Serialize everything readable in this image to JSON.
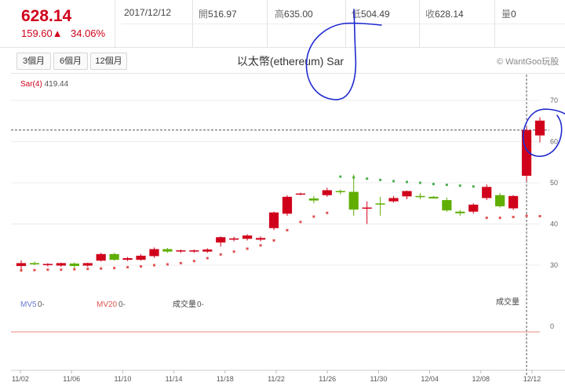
{
  "quote": {
    "last": "628.14",
    "change": "159.60▲",
    "change_pct": "34.06%"
  },
  "stats": {
    "date": "2017/12/12",
    "open_label": "開",
    "open": "516.97",
    "high_label": "高",
    "high": "635.00",
    "low_label": "低",
    "low": "504.49",
    "close_label": "收",
    "close": "628.14",
    "vol_label": "量",
    "vol": "0"
  },
  "range_buttons": [
    "3個月",
    "6個月",
    "12個月"
  ],
  "title": "以太幣(ethereum) Sar",
  "credit": "© WantGoo玩股",
  "indicator": {
    "name": "Sar(4)",
    "value": "419.44"
  },
  "volume_labels": {
    "mv5": "MV5",
    "mv5_val": "0-",
    "mv20": "MV20",
    "mv20_val": "0-",
    "vol": "成交量",
    "vol_val": "0-",
    "panel_title": "成交量",
    "zero": "0"
  },
  "colors": {
    "up": "#d0021b",
    "down": "#5fae00",
    "sar": "#e05252",
    "sar_above": "#4caf50",
    "mv5": "#6a78d1",
    "mv20": "#e05252",
    "annotation": "#1f2ad1"
  },
  "chart_data": {
    "type": "candlestick",
    "y_axis_ticks": [
      "70",
      "60",
      "50",
      "40",
      "30"
    ],
    "ylim": [
      230,
      730
    ],
    "current_price": 628.14,
    "x_tick_labels": [
      "11/02",
      "11/06",
      "11/10",
      "11/14",
      "11/18",
      "11/22",
      "11/26",
      "11/30",
      "12/04",
      "12/08",
      "12/12"
    ],
    "candles": [
      {
        "o": 298,
        "h": 312,
        "l": 288,
        "c": 305
      },
      {
        "o": 305,
        "h": 309,
        "l": 300,
        "c": 302
      },
      {
        "o": 301,
        "h": 305,
        "l": 297,
        "c": 303
      },
      {
        "o": 299,
        "h": 306,
        "l": 296,
        "c": 305
      },
      {
        "o": 304,
        "h": 307,
        "l": 293,
        "c": 298
      },
      {
        "o": 299,
        "h": 306,
        "l": 296,
        "c": 305
      },
      {
        "o": 311,
        "h": 330,
        "l": 309,
        "c": 327
      },
      {
        "o": 327,
        "h": 330,
        "l": 311,
        "c": 313
      },
      {
        "o": 313,
        "h": 320,
        "l": 310,
        "c": 317
      },
      {
        "o": 313,
        "h": 327,
        "l": 311,
        "c": 323
      },
      {
        "o": 322,
        "h": 343,
        "l": 318,
        "c": 339
      },
      {
        "o": 339,
        "h": 342,
        "l": 330,
        "c": 333
      },
      {
        "o": 334,
        "h": 338,
        "l": 330,
        "c": 336
      },
      {
        "o": 333,
        "h": 338,
        "l": 330,
        "c": 336
      },
      {
        "o": 333,
        "h": 341,
        "l": 330,
        "c": 338
      },
      {
        "o": 355,
        "h": 370,
        "l": 345,
        "c": 368
      },
      {
        "o": 362,
        "h": 369,
        "l": 358,
        "c": 365
      },
      {
        "o": 364,
        "h": 375,
        "l": 360,
        "c": 372
      },
      {
        "o": 362,
        "h": 370,
        "l": 358,
        "c": 366
      },
      {
        "o": 390,
        "h": 430,
        "l": 385,
        "c": 428
      },
      {
        "o": 425,
        "h": 470,
        "l": 420,
        "c": 466
      },
      {
        "o": 474,
        "h": 476,
        "l": 470,
        "c": 474
      },
      {
        "o": 462,
        "h": 468,
        "l": 450,
        "c": 457
      },
      {
        "o": 470,
        "h": 488,
        "l": 466,
        "c": 482
      },
      {
        "o": 480,
        "h": 484,
        "l": 472,
        "c": 478
      },
      {
        "o": 478,
        "h": 520,
        "l": 420,
        "c": 435
      },
      {
        "o": 438,
        "h": 455,
        "l": 400,
        "c": 440
      },
      {
        "o": 450,
        "h": 466,
        "l": 420,
        "c": 449
      },
      {
        "o": 455,
        "h": 468,
        "l": 452,
        "c": 463
      },
      {
        "o": 467,
        "h": 481,
        "l": 460,
        "c": 480
      },
      {
        "o": 468,
        "h": 475,
        "l": 460,
        "c": 466
      },
      {
        "o": 466,
        "h": 468,
        "l": 462,
        "c": 462
      },
      {
        "o": 458,
        "h": 464,
        "l": 430,
        "c": 433
      },
      {
        "o": 430,
        "h": 434,
        "l": 420,
        "c": 426
      },
      {
        "o": 430,
        "h": 450,
        "l": 425,
        "c": 447
      },
      {
        "o": 463,
        "h": 496,
        "l": 458,
        "c": 490
      },
      {
        "o": 470,
        "h": 475,
        "l": 440,
        "c": 443
      },
      {
        "o": 438,
        "h": 470,
        "l": 434,
        "c": 468
      },
      {
        "o": 517,
        "h": 635,
        "l": 504,
        "c": 628
      },
      {
        "o": 615,
        "h": 659,
        "l": 598,
        "c": 651
      }
    ],
    "sar": [
      {
        "v": 287,
        "above": false
      },
      {
        "v": 288,
        "above": false
      },
      {
        "v": 289,
        "above": false
      },
      {
        "v": 289,
        "above": false
      },
      {
        "v": 290,
        "above": false
      },
      {
        "v": 291,
        "above": false
      },
      {
        "v": 292,
        "above": false
      },
      {
        "v": 293,
        "above": false
      },
      {
        "v": 295,
        "above": false
      },
      {
        "v": 297,
        "above": false
      },
      {
        "v": 300,
        "above": false
      },
      {
        "v": 302,
        "above": false
      },
      {
        "v": 305,
        "above": false
      },
      {
        "v": 310,
        "above": false
      },
      {
        "v": 317,
        "above": false
      },
      {
        "v": 326,
        "above": false
      },
      {
        "v": 333,
        "above": false
      },
      {
        "v": 340,
        "above": false
      },
      {
        "v": 348,
        "above": false
      },
      {
        "v": 360,
        "above": false
      },
      {
        "v": 385,
        "above": false
      },
      {
        "v": 405,
        "above": false
      },
      {
        "v": 418,
        "above": false
      },
      {
        "v": 427,
        "above": false
      },
      {
        "v": 515,
        "above": true
      },
      {
        "v": 513,
        "above": true
      },
      {
        "v": 510,
        "above": true
      },
      {
        "v": 507,
        "above": true
      },
      {
        "v": 504,
        "above": true
      },
      {
        "v": 502,
        "above": true
      },
      {
        "v": 500,
        "above": true
      },
      {
        "v": 497,
        "above": true
      },
      {
        "v": 495,
        "above": true
      },
      {
        "v": 493,
        "above": true
      },
      {
        "v": 491,
        "above": true
      },
      {
        "v": 415,
        "above": false
      },
      {
        "v": 415,
        "above": false
      },
      {
        "v": 417,
        "above": false
      },
      {
        "v": 420,
        "above": false
      },
      {
        "v": 419,
        "above": false
      }
    ]
  }
}
